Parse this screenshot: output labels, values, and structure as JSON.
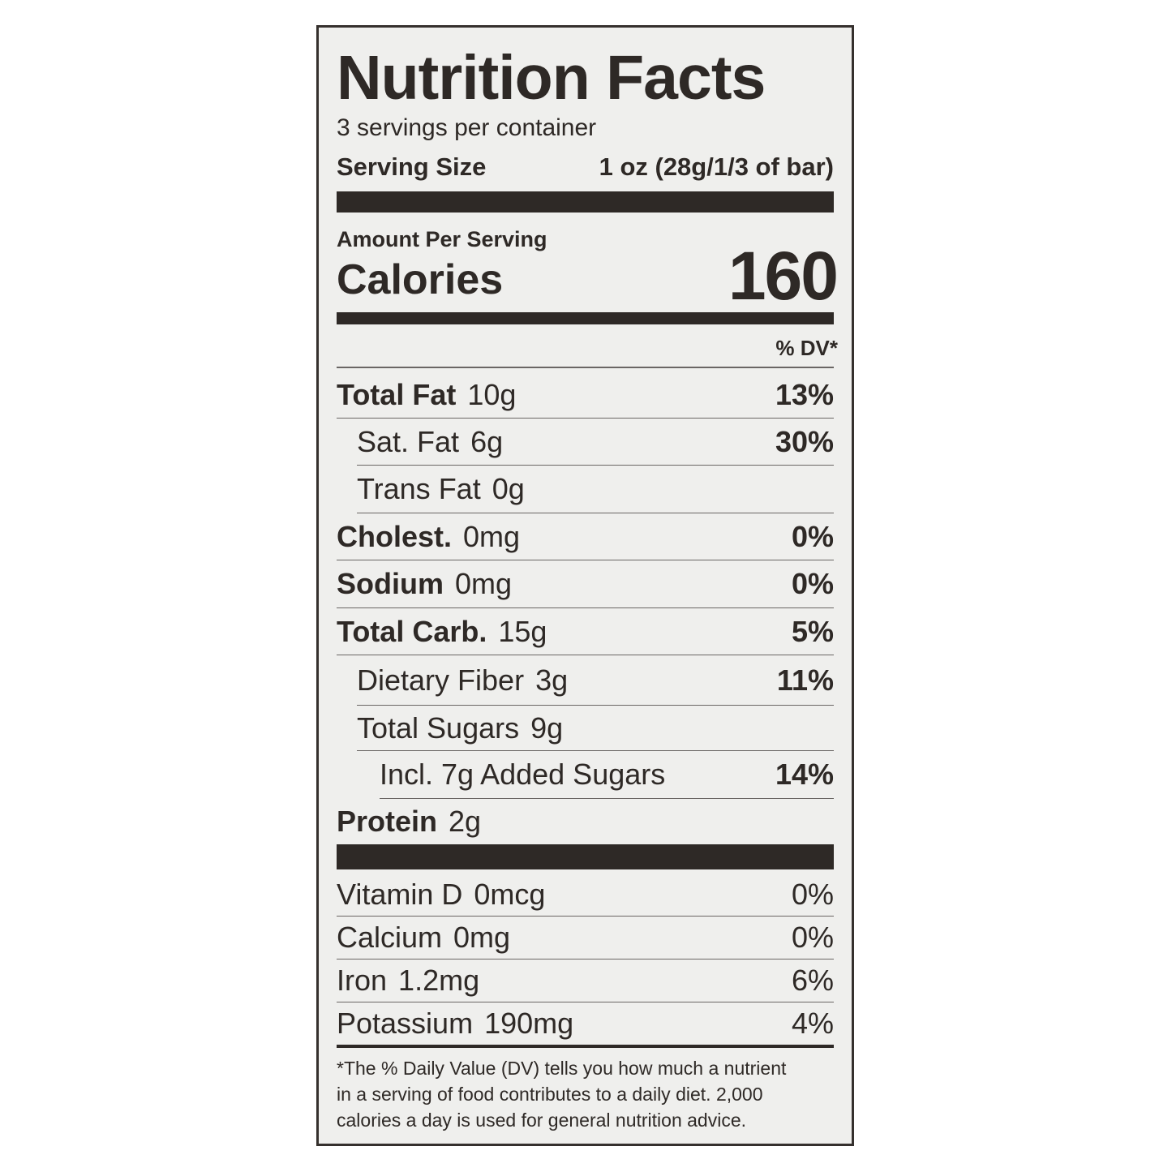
{
  "title": "Nutrition Facts",
  "servings": "3 servings per container",
  "serving_size": {
    "label": "Serving Size",
    "value": "1 oz (28g/1/3 of bar)"
  },
  "amount_per_serving": "Amount Per Serving",
  "calories": {
    "label": "Calories",
    "value": "160"
  },
  "dv_header": "% DV*",
  "nutrients": [
    {
      "name": "Total Fat",
      "amount": "10g",
      "dv": "13%"
    },
    {
      "name": "Sat. Fat",
      "amount": "6g",
      "dv": "30%"
    },
    {
      "name": "Trans Fat",
      "amount": "0g"
    },
    {
      "name": "Cholest.",
      "amount": "0mg",
      "dv": "0%"
    },
    {
      "name": "Sodium",
      "amount": "0mg",
      "dv": "0%"
    },
    {
      "name": "Total Carb.",
      "amount": "15g",
      "dv": "5%"
    },
    {
      "name": "Dietary Fiber",
      "amount": "3g",
      "dv": "11%"
    },
    {
      "name": "Total Sugars",
      "amount": "9g"
    },
    {
      "name": "Incl. 7g Added Sugars",
      "dv": "14%"
    },
    {
      "name": "Protein",
      "amount": "2g"
    }
  ],
  "vitamins": [
    {
      "name": "Vitamin D",
      "amount": "0mcg",
      "dv": "0%"
    },
    {
      "name": "Calcium",
      "amount": "0mg",
      "dv": "0%"
    },
    {
      "name": "Iron",
      "amount": "1.2mg",
      "dv": "6%"
    },
    {
      "name": "Potassium",
      "amount": "190mg",
      "dv": "4%"
    }
  ],
  "footnote": [
    "*The % Daily Value (DV) tells you how much a nutrient",
    "in a serving of food contributes to a daily diet. 2,000",
    "calories a day is used for general nutrition advice."
  ]
}
